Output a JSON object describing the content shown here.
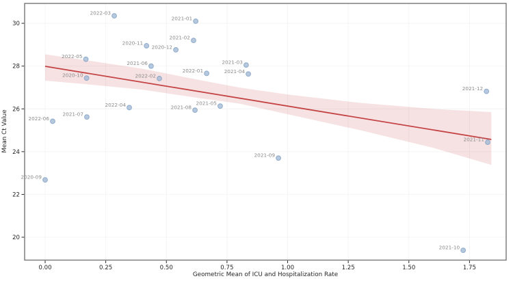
{
  "chart_data": {
    "type": "scatter",
    "title": "",
    "xlabel": "Geometric Mean of ICU and Hospitalization Rate",
    "ylabel": "Mean Ct Value",
    "x_offset_text": "1e7",
    "x_unit_scale": 10000000,
    "grid": true,
    "legend": "none",
    "xlim": [
      -0.0846,
      1.9012
    ],
    "ylim": [
      18.93,
      30.93
    ],
    "x_ticks": [
      0.0,
      0.25,
      0.5,
      0.75,
      1.0,
      1.25,
      1.5,
      1.75
    ],
    "x_tick_labels": [
      "0.00",
      "0.25",
      "0.50",
      "0.75",
      "1.00",
      "1.25",
      "1.50",
      "1.75"
    ],
    "y_ticks": [
      30,
      28,
      26,
      24,
      22,
      20
    ],
    "y_tick_labels": [
      "30",
      "28",
      "26",
      "24",
      "22",
      "20"
    ],
    "points": [
      {
        "label": "2020-09",
        "x": 0.0,
        "y": 22.68
      },
      {
        "label": "2020-10",
        "x": 0.171,
        "y": 27.44
      },
      {
        "label": "2020-11",
        "x": 0.418,
        "y": 28.95
      },
      {
        "label": "2020-12",
        "x": 0.539,
        "y": 28.76
      },
      {
        "label": "2021-01",
        "x": 0.621,
        "y": 30.1
      },
      {
        "label": "2021-02",
        "x": 0.612,
        "y": 29.2
      },
      {
        "label": "2021-03",
        "x": 0.829,
        "y": 28.05
      },
      {
        "label": "2021-04",
        "x": 0.838,
        "y": 27.63
      },
      {
        "label": "2021-05",
        "x": 0.722,
        "y": 26.13
      },
      {
        "label": "2021-06",
        "x": 0.437,
        "y": 28.0
      },
      {
        "label": "2021-07",
        "x": 0.172,
        "y": 25.62
      },
      {
        "label": "2021-08",
        "x": 0.618,
        "y": 25.94
      },
      {
        "label": "2021-09",
        "x": 0.962,
        "y": 23.7
      },
      {
        "label": "2021-10",
        "x": 1.724,
        "y": 19.39
      },
      {
        "label": "2021-11",
        "x": 1.825,
        "y": 24.44
      },
      {
        "label": "2021-12",
        "x": 1.82,
        "y": 26.82
      },
      {
        "label": "2022-01",
        "x": 0.666,
        "y": 27.66
      },
      {
        "label": "2022-02",
        "x": 0.471,
        "y": 27.42
      },
      {
        "label": "2022-03",
        "x": 0.285,
        "y": 30.35
      },
      {
        "label": "2022-04",
        "x": 0.347,
        "y": 26.06
      },
      {
        "label": "2022-05",
        "x": 0.168,
        "y": 28.32
      },
      {
        "label": "2022-06",
        "x": 0.031,
        "y": 25.42
      }
    ],
    "regression": {
      "x": [
        0.0,
        1.84
      ],
      "y": [
        27.99,
        24.57
      ],
      "color": "#c44345"
    },
    "ci_band": {
      "x": [
        0.0,
        0.2,
        0.4,
        0.65,
        0.8,
        1.0,
        1.3,
        1.6,
        1.84
      ],
      "top": [
        28.55,
        28.22,
        27.88,
        27.32,
        27.0,
        26.67,
        26.28,
        26.0,
        25.85
      ],
      "bottom": [
        27.32,
        27.12,
        26.9,
        26.48,
        26.25,
        25.75,
        25.0,
        24.18,
        23.38
      ],
      "color": "rgba(197,75,77,0.16)"
    },
    "style": {
      "point_fill": "#9db6d3",
      "point_edge": "#86a5c8",
      "point_opacity": 0.75,
      "point_radius": 3.4,
      "point_label_color": "#8a8a8a",
      "grid_color": "#f4f4f4",
      "spine_color": "#7f7f7f",
      "tick_color": "#262626",
      "tick_label_color": "#262626",
      "background": "#ffffff"
    }
  }
}
